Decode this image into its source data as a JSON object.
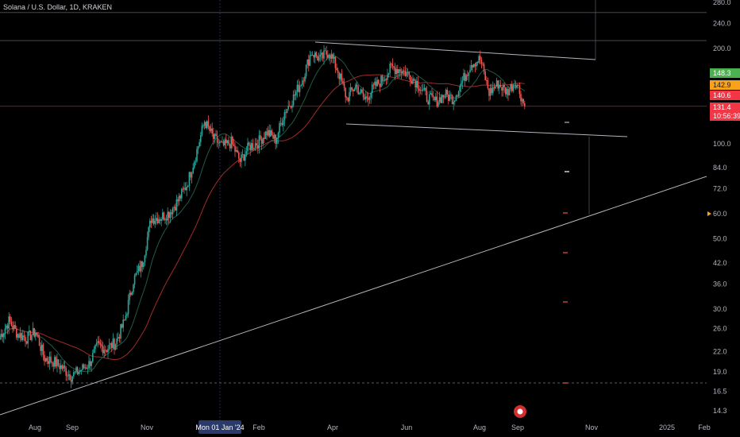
{
  "header": {
    "symbol_title": "Solana / U.S. Dollar, 1D, KRAKEN"
  },
  "colors": {
    "background": "#000000",
    "up_candle": "#26a69a",
    "down_candle": "#ef5350",
    "ma_fast": "#1e5a44",
    "ma_slow": "#a32a2a",
    "trendline": "#b2b5be",
    "price_line": "#a02626",
    "tag_green": "#4caf50",
    "tag_orange": "#f7a21b",
    "tag_red": "#f23645"
  },
  "chart_data": {
    "type": "candlestick",
    "symbol": "Solana / U.S. Dollar",
    "interval": "1D",
    "exchange": "KRAKEN",
    "y_scale": "log",
    "ylim": [
      13.5,
      285
    ],
    "y_ticks": [
      280.0,
      240.0,
      200.0,
      100.0,
      84.0,
      72.0,
      60.0,
      50.0,
      42.0,
      36.0,
      30.0,
      26.0,
      22.0,
      19.0,
      16.5,
      14.3
    ],
    "x_ticks": [
      "Aug",
      "Sep",
      "Nov",
      "Mon 01 Jan '24",
      "Feb",
      "Apr",
      "Jun",
      "Aug",
      "Sep",
      "Nov",
      "2025",
      "Feb"
    ],
    "price_tags": [
      {
        "label": "148.3",
        "value": 148.3,
        "color": "green"
      },
      {
        "label": "142.9",
        "value": 142.9,
        "color": "orange"
      },
      {
        "label": "140.6",
        "value": 140.6,
        "color": "red"
      },
      {
        "label": "131.4",
        "value": 131.4,
        "color": "red"
      },
      {
        "label": "10:56:39",
        "value": 131.4,
        "color": "red"
      }
    ],
    "horizontal_levels": [
      260,
      212
    ],
    "series": [
      {
        "name": "SOL/USD",
        "points": [
          [
            "2023-07-15",
            24.5
          ],
          [
            "2023-07-22",
            27.5
          ],
          [
            "2023-07-29",
            25.0
          ],
          [
            "2023-08-05",
            24.3
          ],
          [
            "2023-08-12",
            25.4
          ],
          [
            "2023-08-19",
            21.0
          ],
          [
            "2023-08-26",
            20.5
          ],
          [
            "2023-09-02",
            19.6
          ],
          [
            "2023-09-09",
            18.4
          ],
          [
            "2023-09-16",
            19.2
          ],
          [
            "2023-09-23",
            20.1
          ],
          [
            "2023-09-30",
            23.0
          ],
          [
            "2023-10-07",
            22.5
          ],
          [
            "2023-10-14",
            23.5
          ],
          [
            "2023-10-21",
            27.5
          ],
          [
            "2023-10-28",
            37.0
          ],
          [
            "2023-11-04",
            42.0
          ],
          [
            "2023-11-11",
            58.0
          ],
          [
            "2023-11-18",
            58.5
          ],
          [
            "2023-11-25",
            60.5
          ],
          [
            "2023-12-02",
            66.0
          ],
          [
            "2023-12-09",
            74.0
          ],
          [
            "2023-12-16",
            92.0
          ],
          [
            "2023-12-23",
            118.0
          ],
          [
            "2023-12-30",
            104.0
          ],
          [
            "2024-01-06",
            98.0
          ],
          [
            "2024-01-13",
            101.0
          ],
          [
            "2024-01-20",
            88.0
          ],
          [
            "2024-01-27",
            98.0
          ],
          [
            "2024-02-03",
            101.0
          ],
          [
            "2024-02-10",
            109.0
          ],
          [
            "2024-02-17",
            103.0
          ],
          [
            "2024-02-24",
            126.0
          ],
          [
            "2024-03-02",
            140.0
          ],
          [
            "2024-03-09",
            160.0
          ],
          [
            "2024-03-16",
            195.0
          ],
          [
            "2024-03-23",
            185.0
          ],
          [
            "2024-03-30",
            196.0
          ],
          [
            "2024-04-06",
            170.0
          ],
          [
            "2024-04-13",
            139.0
          ],
          [
            "2024-04-20",
            153.0
          ],
          [
            "2024-04-27",
            138.0
          ],
          [
            "2024-05-04",
            150.0
          ],
          [
            "2024-05-11",
            160.0
          ],
          [
            "2024-05-18",
            174.0
          ],
          [
            "2024-05-25",
            172.0
          ],
          [
            "2024-06-01",
            165.0
          ],
          [
            "2024-06-08",
            155.0
          ],
          [
            "2024-06-15",
            140.0
          ],
          [
            "2024-06-22",
            136.0
          ],
          [
            "2024-06-29",
            143.0
          ],
          [
            "2024-07-06",
            139.0
          ],
          [
            "2024-07-13",
            158.0
          ],
          [
            "2024-07-20",
            180.0
          ],
          [
            "2024-07-27",
            185.0
          ],
          [
            "2024-08-03",
            145.0
          ],
          [
            "2024-08-10",
            155.0
          ],
          [
            "2024-08-17",
            146.0
          ],
          [
            "2024-08-24",
            158.0
          ],
          [
            "2024-08-31",
            131.4
          ]
        ]
      }
    ]
  }
}
